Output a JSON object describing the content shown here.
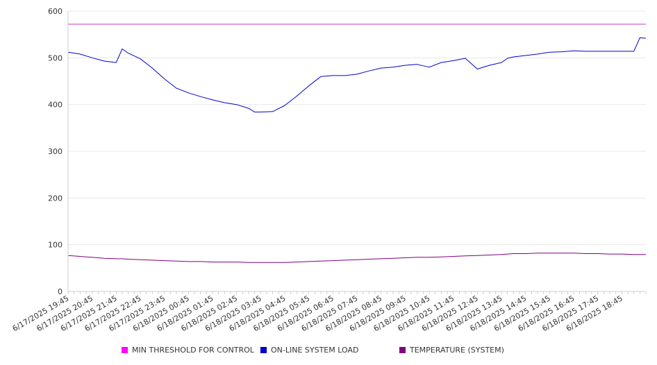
{
  "chart_data": {
    "type": "line",
    "title": "",
    "xlabel": "",
    "ylabel": "",
    "ylim": [
      0,
      600
    ],
    "yticks": [
      0,
      100,
      200,
      300,
      400,
      500,
      600
    ],
    "grid": true,
    "legend_position": "bottom",
    "x_tick_labels": [
      "6/17/2025 19:45",
      "6/17/2025 20:45",
      "6/17/2025 21:45",
      "6/17/2025 22:45",
      "6/17/2025 23:45",
      "6/18/2025 00:45",
      "6/18/2025 01:45",
      "6/18/2025 02:45",
      "6/18/2025 03:45",
      "6/18/2025 04:45",
      "6/18/2025 05:45",
      "6/18/2025 06:45",
      "6/18/2025 07:45",
      "6/18/2025 08:45",
      "6/18/2025 09:45",
      "6/18/2025 10:45",
      "6/18/2025 11:45",
      "6/18/2025 12:45",
      "6/18/2025 13:45",
      "6/18/2025 14:45",
      "6/18/2025 15:45",
      "6/18/2025 16:45",
      "6/18/2025 17:45",
      "6/18/2025 18:45"
    ],
    "x_hours": [
      0,
      0.5,
      1,
      1.5,
      2,
      2.25,
      2.5,
      3,
      3.5,
      4,
      4.5,
      5,
      5.5,
      6,
      6.5,
      7,
      7.5,
      7.75,
      8,
      8.5,
      9,
      9.5,
      10,
      10.5,
      11,
      11.5,
      12,
      12.5,
      13,
      13.5,
      14,
      14.5,
      15,
      15.5,
      16,
      16.5,
      17,
      17.5,
      18,
      18.25,
      18.5,
      19,
      19.5,
      20,
      20.5,
      21,
      21.5,
      22,
      22.5,
      23,
      23.5,
      23.75,
      24
    ],
    "series": [
      {
        "name": "MIN THRESHOLD FOR CONTROL",
        "color": "#cc33cc",
        "values": [
          572,
          572,
          572,
          572,
          572,
          572,
          572,
          572,
          572,
          572,
          572,
          572,
          572,
          572,
          572,
          572,
          572,
          572,
          572,
          572,
          572,
          572,
          572,
          572,
          572,
          572,
          572,
          572,
          572,
          572,
          572,
          572,
          572,
          572,
          572,
          572,
          572,
          572,
          572,
          572,
          572,
          572,
          572,
          572,
          572,
          572,
          572,
          572,
          572,
          572,
          572,
          572,
          572
        ]
      },
      {
        "name": "ON-LINE SYSTEM LOAD",
        "color": "#0000cc",
        "values": [
          512,
          508,
          500,
          493,
          490,
          519,
          510,
          498,
          478,
          455,
          435,
          425,
          417,
          410,
          404,
          400,
          392,
          384,
          384,
          385,
          398,
          418,
          440,
          460,
          462,
          462,
          465,
          472,
          478,
          480,
          484,
          486,
          480,
          490,
          494,
          499,
          476,
          484,
          490,
          499,
          502,
          505,
          508,
          512,
          513,
          515,
          514,
          514,
          514,
          514,
          514,
          543,
          542
        ]
      },
      {
        "name": "TEMPERATURE (SYSTEM)",
        "color": "#800080",
        "values": [
          77,
          75,
          73,
          71,
          70,
          70,
          69,
          68,
          67,
          66,
          65,
          64,
          64,
          63,
          63,
          63,
          62,
          62,
          62,
          62,
          62,
          63,
          64,
          65,
          66,
          67,
          68,
          69,
          70,
          71,
          72,
          73,
          73,
          74,
          75,
          76,
          77,
          78,
          79,
          80,
          81,
          81,
          82,
          82,
          82,
          82,
          81,
          81,
          80,
          80,
          79,
          79,
          79
        ]
      }
    ]
  },
  "legend": [
    {
      "label": "MIN THRESHOLD FOR CONTROL",
      "color": "#ff00ff"
    },
    {
      "label": "ON-LINE SYSTEM LOAD",
      "color": "#0000cc"
    },
    {
      "label": "TEMPERATURE (SYSTEM)",
      "color": "#800080"
    }
  ]
}
